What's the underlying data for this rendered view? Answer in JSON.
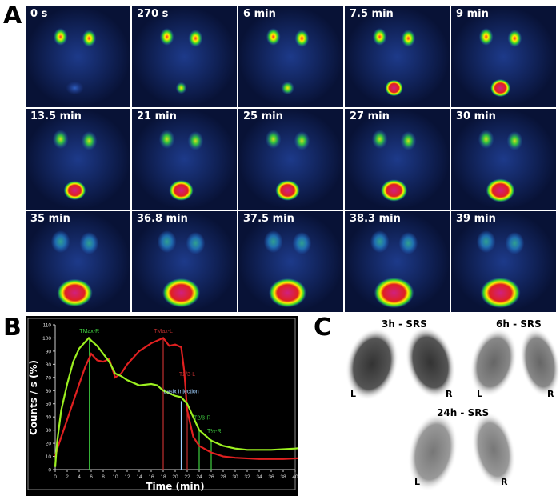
{
  "panel_labels": {
    "a": "A",
    "b": "B",
    "c": "C"
  },
  "panel_a": {
    "frames": [
      "0 s",
      "270 s",
      "6 min",
      "7.5 min",
      "9 min",
      "13.5 min",
      "21 min",
      "25 min",
      "27 min",
      "30 min",
      "35 min",
      "36.8 min",
      "37.5 min",
      "38.3 min",
      "39 min"
    ]
  },
  "chart_data": {
    "type": "line",
    "xlabel": "Time (min)",
    "ylabel": "Counts / s (%)",
    "xlim": [
      0,
      42
    ],
    "ylim": [
      0,
      110
    ],
    "xticks": [
      0,
      2,
      4,
      6,
      8,
      10,
      12,
      14,
      16,
      18,
      20,
      22,
      24,
      26,
      28,
      30,
      32,
      34,
      36,
      38,
      40,
      42
    ],
    "yticks": [
      0,
      10,
      20,
      30,
      40,
      50,
      60,
      70,
      80,
      90,
      100,
      110
    ],
    "grid": false,
    "colors": {
      "right": "#9cf020",
      "left": "#e02020",
      "lasix": "#a0d0ff"
    },
    "series": [
      {
        "key": "right",
        "x": [
          0,
          0.3,
          1,
          2,
          3,
          4,
          5,
          5.6,
          6,
          7,
          8,
          9,
          10,
          11,
          12,
          14,
          16,
          17,
          18,
          20,
          21,
          22,
          23,
          24,
          25,
          26,
          28,
          30,
          32,
          36,
          40,
          42
        ],
        "y": [
          2,
          20,
          45,
          65,
          82,
          92,
          97,
          100,
          98,
          94,
          88,
          82,
          73,
          71,
          68,
          64,
          65,
          64,
          60,
          56,
          55,
          50,
          40,
          30,
          26,
          22,
          18,
          16,
          15,
          15,
          16,
          17
        ]
      },
      {
        "key": "left",
        "x": [
          0,
          0.5,
          2,
          4,
          5,
          6,
          7,
          8,
          9,
          10,
          11,
          12,
          14,
          16,
          18,
          19,
          20,
          21,
          21.5,
          22,
          23,
          24,
          26,
          28,
          30,
          34,
          38,
          42
        ],
        "y": [
          10,
          18,
          38,
          65,
          78,
          88,
          83,
          82,
          84,
          70,
          73,
          80,
          90,
          96,
          100,
          94,
          95,
          93,
          75,
          45,
          25,
          18,
          13,
          10,
          9,
          8,
          8,
          9
        ]
      }
    ],
    "markers": [
      {
        "label": "TMax-R",
        "x": 5.7,
        "y": 100,
        "color": "#40d040"
      },
      {
        "label": "TMax-L",
        "x": 18,
        "y": 100,
        "color": "#c03030"
      },
      {
        "label": "T2/3-L",
        "x": 22,
        "y": 50,
        "color": "#c03030"
      },
      {
        "label": "Lasix Injection",
        "x": 21,
        "y": 52,
        "color": "#a0d0ff"
      },
      {
        "label": "T2/3-R",
        "x": 24,
        "y": 30,
        "color": "#40d040"
      },
      {
        "label": "T½-R",
        "x": 26,
        "y": 23,
        "color": "#40d040"
      }
    ]
  },
  "panel_c": {
    "groups": [
      {
        "title": "3h - SRS",
        "left": "L",
        "right": "R"
      },
      {
        "title": "6h - SRS",
        "left": "L",
        "right": "R"
      },
      {
        "title": "24h - SRS",
        "left": "L",
        "right": "R"
      }
    ]
  }
}
